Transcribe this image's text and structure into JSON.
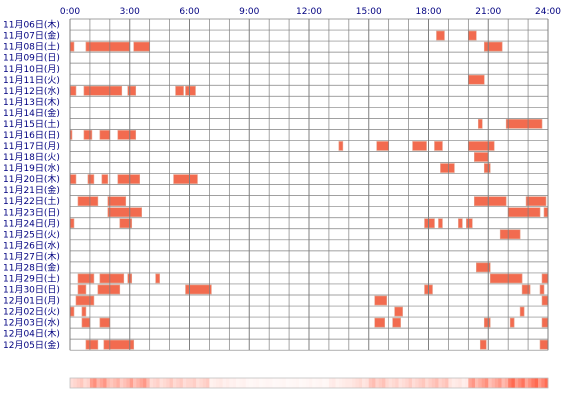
{
  "chart_data": {
    "type": "heatmap",
    "title": "",
    "xlabel": "",
    "ylabel": "",
    "x_range_hours": [
      0,
      24
    ],
    "grid": true,
    "colors": {
      "block": "#f26b4f",
      "block_edge": "#e8a48f",
      "grid": "#808080",
      "label": "#000080",
      "background": "#ffffff"
    },
    "x_ticks": [
      "0:00",
      "3:00",
      "6:00",
      "9:00",
      "12:00",
      "15:00",
      "18:00",
      "21:00",
      "24:00"
    ],
    "rows": [
      {
        "label": "11月06日(木)",
        "blocks": []
      },
      {
        "label": "11月07日(金)",
        "blocks": [
          [
            18.4,
            18.8
          ],
          [
            20.0,
            20.4
          ]
        ]
      },
      {
        "label": "11月08日(土)",
        "blocks": [
          [
            0.0,
            0.2
          ],
          [
            0.8,
            3.0
          ],
          [
            3.2,
            4.0
          ],
          [
            20.8,
            21.7
          ]
        ]
      },
      {
        "label": "11月09日(日)",
        "blocks": []
      },
      {
        "label": "11月10日(月)",
        "blocks": []
      },
      {
        "label": "11月11日(火)",
        "blocks": [
          [
            20.0,
            20.8
          ]
        ]
      },
      {
        "label": "11月12日(水)",
        "blocks": [
          [
            0.0,
            0.3
          ],
          [
            0.7,
            2.6
          ],
          [
            2.9,
            3.3
          ],
          [
            5.3,
            5.7
          ],
          [
            5.8,
            6.3
          ]
        ]
      },
      {
        "label": "11月13日(木)",
        "blocks": []
      },
      {
        "label": "11月14日(金)",
        "blocks": []
      },
      {
        "label": "11月15日(土)",
        "blocks": [
          [
            20.5,
            20.7
          ],
          [
            21.9,
            23.7
          ]
        ]
      },
      {
        "label": "11月16日(日)",
        "blocks": [
          [
            0.0,
            0.1
          ],
          [
            0.7,
            1.1
          ],
          [
            1.5,
            2.0
          ],
          [
            2.4,
            3.3
          ]
        ]
      },
      {
        "label": "11月17日(月)",
        "blocks": [
          [
            13.5,
            13.7
          ],
          [
            15.4,
            16.0
          ],
          [
            17.2,
            17.9
          ],
          [
            18.3,
            18.7
          ],
          [
            20.0,
            21.3
          ]
        ]
      },
      {
        "label": "11月18日(火)",
        "blocks": [
          [
            20.3,
            21.0
          ]
        ]
      },
      {
        "label": "11月19日(水)",
        "blocks": [
          [
            18.6,
            19.3
          ],
          [
            20.8,
            21.1
          ]
        ]
      },
      {
        "label": "11月20日(木)",
        "blocks": [
          [
            0.0,
            0.3
          ],
          [
            0.9,
            1.2
          ],
          [
            1.6,
            1.9
          ],
          [
            2.4,
            3.5
          ],
          [
            5.2,
            6.4
          ]
        ]
      },
      {
        "label": "11月21日(金)",
        "blocks": []
      },
      {
        "label": "11月22日(土)",
        "blocks": [
          [
            0.4,
            1.4
          ],
          [
            1.9,
            2.8
          ],
          [
            20.3,
            21.9
          ],
          [
            22.9,
            23.9
          ]
        ]
      },
      {
        "label": "11月23日(日)",
        "blocks": [
          [
            1.9,
            3.6
          ],
          [
            22.0,
            23.6
          ],
          [
            23.8,
            24.0
          ]
        ]
      },
      {
        "label": "11月24日(月)",
        "blocks": [
          [
            0.0,
            0.2
          ],
          [
            2.5,
            3.1
          ],
          [
            17.8,
            18.3
          ],
          [
            18.5,
            18.7
          ],
          [
            19.5,
            19.7
          ],
          [
            19.9,
            20.2
          ]
        ]
      },
      {
        "label": "11月25日(火)",
        "blocks": [
          [
            21.6,
            22.6
          ]
        ]
      },
      {
        "label": "11月26日(水)",
        "blocks": []
      },
      {
        "label": "11月27日(木)",
        "blocks": []
      },
      {
        "label": "11月28日(金)",
        "blocks": [
          [
            20.4,
            21.1
          ]
        ]
      },
      {
        "label": "11月29日(土)",
        "blocks": [
          [
            0.4,
            1.2
          ],
          [
            1.5,
            2.7
          ],
          [
            2.9,
            3.1
          ],
          [
            4.3,
            4.5
          ],
          [
            21.1,
            22.7
          ],
          [
            23.7,
            24.0
          ]
        ]
      },
      {
        "label": "11月30日(日)",
        "blocks": [
          [
            0.4,
            0.8
          ],
          [
            1.4,
            2.5
          ],
          [
            5.8,
            7.1
          ],
          [
            17.8,
            18.2
          ],
          [
            22.7,
            23.1
          ],
          [
            23.6,
            23.8
          ]
        ]
      },
      {
        "label": "12月01日(月)",
        "blocks": [
          [
            0.3,
            1.2
          ],
          [
            15.3,
            15.9
          ],
          [
            23.7,
            24.0
          ]
        ]
      },
      {
        "label": "12月02日(火)",
        "blocks": [
          [
            0.0,
            0.2
          ],
          [
            0.6,
            0.8
          ],
          [
            16.3,
            16.7
          ],
          [
            22.6,
            22.8
          ]
        ]
      },
      {
        "label": "12月03日(水)",
        "blocks": [
          [
            0.6,
            1.0
          ],
          [
            1.5,
            2.0
          ],
          [
            15.3,
            15.8
          ],
          [
            16.2,
            16.6
          ],
          [
            20.8,
            21.1
          ],
          [
            22.1,
            22.3
          ],
          [
            23.7,
            24.0
          ]
        ]
      },
      {
        "label": "12月04日(木)",
        "blocks": []
      },
      {
        "label": "12月05日(金)",
        "blocks": [
          [
            0.8,
            1.4
          ],
          [
            1.7,
            3.2
          ],
          [
            20.6,
            20.9
          ],
          [
            23.6,
            24.0
          ]
        ]
      }
    ],
    "summary_bar": {
      "hourly_intensity": [
        0.3,
        0.6,
        0.45,
        0.55,
        0.25,
        0.3,
        0.28,
        0.12,
        0.08,
        0.06,
        0.05,
        0.05,
        0.06,
        0.12,
        0.2,
        0.35,
        0.25,
        0.3,
        0.35,
        0.15,
        0.6,
        0.55,
        0.8,
        0.9
      ]
    }
  }
}
